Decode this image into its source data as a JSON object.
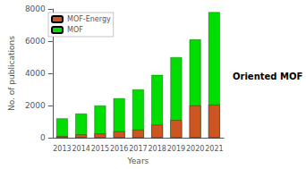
{
  "chart_data": {
    "type": "bar",
    "categories": [
      "2013",
      "2014",
      "2015",
      "2016",
      "2017",
      "2018",
      "2019",
      "2020",
      "2021"
    ],
    "series": [
      {
        "name": "MOF",
        "color": "#00dd00",
        "values": [
          1200,
          1500,
          2000,
          2450,
          3000,
          3900,
          5000,
          6100,
          7800
        ]
      },
      {
        "name": "MOF-Energy",
        "color": "#cc5522",
        "values": [
          100,
          200,
          250,
          400,
          500,
          800,
          1100,
          2000,
          2050
        ]
      }
    ],
    "x_label": "Years",
    "y_label": "No. of publications",
    "ylim": [
      0,
      8000
    ],
    "yticks": [
      0,
      2000,
      4000,
      6000,
      8000
    ],
    "grid": false,
    "legend": "upper left",
    "annotations": [
      "Oriented MOF"
    ]
  }
}
